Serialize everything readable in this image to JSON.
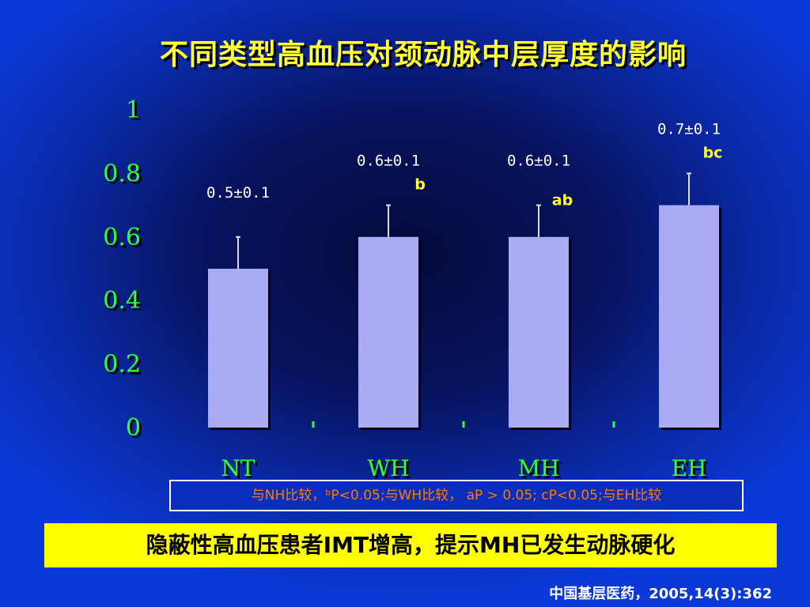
{
  "title": "不同类型高血压对颈动脉中层厚度的影响",
  "chart_data": {
    "type": "bar",
    "categories": [
      "NT",
      "WH",
      "MH",
      "EH"
    ],
    "values": [
      0.5,
      0.6,
      0.6,
      0.7
    ],
    "errors": [
      0.1,
      0.1,
      0.1,
      0.1
    ],
    "value_labels": [
      "0.5±0.1",
      "0.6±0.1",
      "0.6±0.1",
      "0.7±0.1"
    ],
    "significance": [
      "",
      "b",
      "ab",
      "bc"
    ],
    "y_ticks": [
      0,
      0.2,
      0.4,
      0.6,
      0.8,
      1
    ],
    "y_tick_labels": [
      "0",
      "0.2",
      "0.4",
      "0.6",
      "0.8",
      "1"
    ],
    "ylim": [
      0,
      1
    ],
    "grid": false,
    "colors": {
      "bar": "#aaaaf5",
      "axis": "#33ff33",
      "error_bar": "#dddddd",
      "value_label": "#ffffff",
      "significance": "#ffff33"
    }
  },
  "legend_note": "与NH比较，ᵇP<0.05;与WH比较， aP > 0.05; cP<0.05;与EH比较",
  "conclusion": "隐蔽性高血压患者IMT增高，提示MH已发生动脉硬化",
  "source": "中国基层医药，2005,14(3):362"
}
